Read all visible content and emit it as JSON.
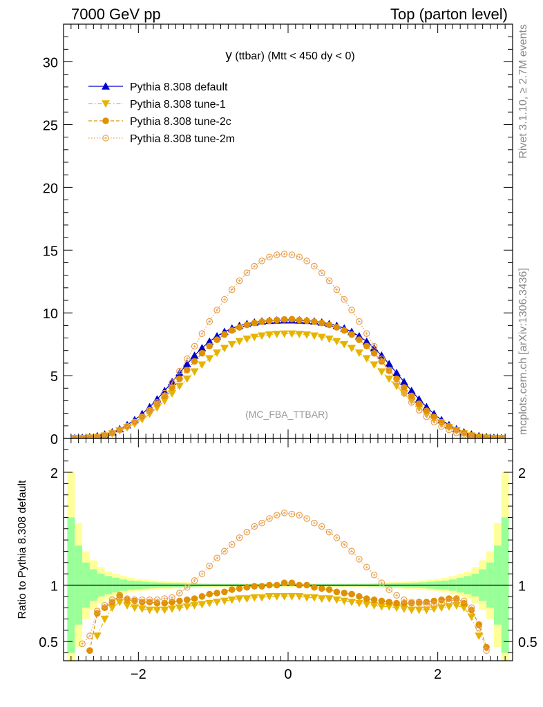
{
  "header": {
    "left_title": "7000 GeV pp",
    "right_title": "Top (parton level)"
  },
  "side_labels": {
    "rivet": "Rivet 3.1.10, ≥ 2.7M events",
    "mcplots": "mcplots.cern.ch [arXiv:1306.3436]"
  },
  "chart_data": [
    {
      "type": "line",
      "panel": "main",
      "title": "y (ttbar) (Mtt < 450 dy < 0)",
      "title_main": "y",
      "title_rest": " (ttbar) (Mtt < 450 dy < 0)",
      "analysis_label": "(MC_FBA_TTBAR)",
      "xlim": [
        -3.0,
        3.0
      ],
      "ylim": [
        0,
        33
      ],
      "yticks": [
        0,
        5,
        10,
        15,
        20,
        25,
        30
      ],
      "legend_position": "top-left",
      "x": [
        -2.85,
        -2.75,
        -2.65,
        -2.55,
        -2.45,
        -2.35,
        -2.25,
        -2.15,
        -2.05,
        -1.95,
        -1.85,
        -1.75,
        -1.65,
        -1.55,
        -1.45,
        -1.35,
        -1.25,
        -1.15,
        -1.05,
        -0.95,
        -0.85,
        -0.75,
        -0.65,
        -0.55,
        -0.45,
        -0.35,
        -0.25,
        -0.15,
        -0.05,
        0.05,
        0.15,
        0.25,
        0.35,
        0.45,
        0.55,
        0.65,
        0.75,
        0.85,
        0.95,
        1.05,
        1.15,
        1.25,
        1.35,
        1.45,
        1.55,
        1.65,
        1.75,
        1.85,
        1.95,
        2.05,
        2.15,
        2.25,
        2.35,
        2.45,
        2.55,
        2.65,
        2.75,
        2.85
      ],
      "series": [
        {
          "name": "Pythia 8.308 default",
          "color": "#0000cc",
          "marker": "triangle-up",
          "line": "solid",
          "values": [
            0.03,
            0.06,
            0.11,
            0.19,
            0.32,
            0.5,
            0.75,
            1.07,
            1.47,
            1.95,
            2.5,
            3.12,
            3.79,
            4.5,
            5.22,
            5.93,
            6.6,
            7.2,
            7.72,
            8.15,
            8.5,
            8.77,
            8.98,
            9.13,
            9.25,
            9.33,
            9.38,
            9.41,
            9.42,
            9.42,
            9.41,
            9.38,
            9.33,
            9.25,
            9.13,
            8.98,
            8.77,
            8.5,
            8.15,
            7.72,
            7.2,
            6.6,
            5.93,
            5.22,
            4.5,
            3.79,
            3.12,
            2.5,
            1.95,
            1.47,
            1.07,
            0.75,
            0.5,
            0.32,
            0.19,
            0.11,
            0.06,
            0.03
          ]
        },
        {
          "name": "Pythia 8.308 tune-1",
          "color": "#e6b400",
          "marker": "triangle-down",
          "line": "dash-dot",
          "values": [
            0.01,
            0.02,
            0.05,
            0.11,
            0.21,
            0.38,
            0.62,
            0.87,
            1.17,
            1.52,
            1.95,
            2.45,
            3.0,
            3.58,
            4.17,
            4.75,
            5.32,
            5.87,
            6.37,
            6.82,
            7.19,
            7.5,
            7.74,
            7.93,
            8.07,
            8.18,
            8.26,
            8.31,
            8.34,
            8.34,
            8.31,
            8.26,
            8.18,
            8.07,
            7.93,
            7.74,
            7.5,
            7.19,
            6.82,
            6.37,
            5.87,
            5.32,
            4.75,
            4.17,
            3.58,
            3.0,
            2.45,
            1.95,
            1.52,
            1.17,
            0.87,
            0.62,
            0.38,
            0.21,
            0.11,
            0.05,
            0.02,
            0.01
          ]
        },
        {
          "name": "Pythia 8.308 tune-2c",
          "color": "#e09000",
          "marker": "circle",
          "line": "dashed",
          "values": [
            0.01,
            0.02,
            0.05,
            0.12,
            0.24,
            0.43,
            0.68,
            0.96,
            1.3,
            1.71,
            2.2,
            2.76,
            3.39,
            4.06,
            4.75,
            5.45,
            6.14,
            6.78,
            7.36,
            7.86,
            8.28,
            8.6,
            8.85,
            9.05,
            9.2,
            9.3,
            9.37,
            9.43,
            9.48,
            9.5,
            9.43,
            9.37,
            9.3,
            9.2,
            9.05,
            8.85,
            8.6,
            8.28,
            7.86,
            7.36,
            6.78,
            6.14,
            5.45,
            4.75,
            4.06,
            3.39,
            2.76,
            2.2,
            1.71,
            1.3,
            0.96,
            0.68,
            0.43,
            0.24,
            0.12,
            0.05,
            0.02,
            0.01
          ]
        },
        {
          "name": "Pythia 8.308 tune-2m",
          "color": "#e8a050",
          "marker": "open-circle",
          "line": "dotted",
          "values": [
            0.01,
            0.02,
            0.05,
            0.12,
            0.25,
            0.44,
            0.69,
            0.96,
            1.3,
            1.72,
            2.25,
            2.87,
            3.6,
            4.44,
            5.36,
            6.34,
            7.34,
            8.35,
            9.32,
            10.23,
            11.07,
            11.85,
            12.56,
            13.19,
            13.72,
            14.14,
            14.45,
            14.63,
            14.69,
            14.63,
            14.45,
            14.14,
            13.72,
            13.19,
            12.56,
            11.85,
            11.07,
            10.23,
            9.32,
            8.35,
            7.34,
            6.34,
            5.36,
            4.44,
            3.6,
            2.87,
            2.25,
            1.72,
            1.3,
            0.96,
            0.69,
            0.44,
            0.25,
            0.12,
            0.05,
            0.02,
            0.01,
            0.01
          ]
        }
      ]
    },
    {
      "type": "line",
      "panel": "ratio",
      "ylabel": "Ratio to Pythia 8.308 default",
      "xlim": [
        -3.0,
        3.0
      ],
      "ylim": [
        0.33,
        2.3
      ],
      "yticks": [
        0.5,
        1,
        2
      ],
      "xticks": [
        -2,
        0,
        2
      ],
      "reference_line": 1,
      "band_edges": [
        -2.9,
        -2.8,
        -2.7,
        -2.6,
        -2.5,
        -2.4,
        -2.3,
        -2.2,
        -2.1,
        -2.0,
        -1.9,
        -1.8,
        -1.7,
        -1.6,
        -1.5,
        -1.4,
        -1.3,
        -1.2,
        -1.1,
        -1.0,
        -0.9,
        -0.8,
        -0.7,
        -0.6,
        -0.5,
        -0.4,
        -0.3,
        -0.2,
        -0.1,
        0.0,
        0.1,
        0.2,
        0.3,
        0.4,
        0.5,
        0.6,
        0.7,
        0.8,
        0.9,
        1.0,
        1.1,
        1.2,
        1.3,
        1.4,
        1.5,
        1.6,
        1.7,
        1.8,
        1.9,
        2.0,
        2.1,
        2.2,
        2.3,
        2.4,
        2.5,
        2.6,
        2.7,
        2.8,
        2.9
      ],
      "band_inner": [
        0.6,
        0.35,
        0.2,
        0.14,
        0.1,
        0.08,
        0.065,
        0.05,
        0.04,
        0.035,
        0.03,
        0.025,
        0.022,
        0.02,
        0.018,
        0.016,
        0.014,
        0.012,
        0.011,
        0.01,
        0.01,
        0.01,
        0.01,
        0.01,
        0.01,
        0.01,
        0.01,
        0.01,
        0.01,
        0.01,
        0.01,
        0.01,
        0.01,
        0.01,
        0.01,
        0.01,
        0.01,
        0.01,
        0.01,
        0.01,
        0.011,
        0.012,
        0.014,
        0.016,
        0.018,
        0.02,
        0.022,
        0.025,
        0.03,
        0.035,
        0.04,
        0.05,
        0.065,
        0.08,
        0.1,
        0.14,
        0.2,
        0.35,
        0.6
      ],
      "band_outer": [
        1.0,
        0.55,
        0.3,
        0.22,
        0.16,
        0.12,
        0.1,
        0.08,
        0.065,
        0.055,
        0.048,
        0.042,
        0.038,
        0.034,
        0.03,
        0.027,
        0.024,
        0.021,
        0.019,
        0.017,
        0.016,
        0.015,
        0.015,
        0.015,
        0.015,
        0.015,
        0.015,
        0.015,
        0.015,
        0.015,
        0.015,
        0.015,
        0.015,
        0.015,
        0.015,
        0.015,
        0.015,
        0.015,
        0.016,
        0.017,
        0.019,
        0.021,
        0.024,
        0.027,
        0.03,
        0.034,
        0.038,
        0.042,
        0.048,
        0.055,
        0.065,
        0.08,
        0.1,
        0.12,
        0.16,
        0.22,
        0.3,
        0.55,
        1.0
      ],
      "series": [
        {
          "name": "Pythia 8.308 tune-1",
          "color": "#e6b400",
          "marker": "triangle-down",
          "line": "dash-dot",
          "x": [
            -2.55,
            -2.45,
            -2.35,
            -2.25,
            -2.15,
            -2.05,
            -1.95,
            -1.85,
            -1.75,
            -1.65,
            -1.55,
            -1.45,
            -1.35,
            -1.25,
            -1.15,
            -1.05,
            -0.95,
            -0.85,
            -0.75,
            -0.65,
            -0.55,
            -0.45,
            -0.35,
            -0.25,
            -0.15,
            -0.05,
            0.05,
            0.15,
            0.25,
            0.35,
            0.45,
            0.55,
            0.65,
            0.75,
            0.85,
            0.95,
            1.05,
            1.15,
            1.25,
            1.35,
            1.45,
            1.55,
            1.65,
            1.75,
            1.85,
            1.95,
            2.05,
            2.15,
            2.25,
            2.35,
            2.45,
            2.55
          ],
          "values": [
            0.55,
            0.7,
            0.8,
            0.85,
            0.82,
            0.8,
            0.79,
            0.78,
            0.78,
            0.78,
            0.79,
            0.8,
            0.81,
            0.82,
            0.83,
            0.84,
            0.85,
            0.86,
            0.87,
            0.88,
            0.88,
            0.89,
            0.89,
            0.9,
            0.9,
            0.9,
            0.9,
            0.9,
            0.89,
            0.89,
            0.88,
            0.88,
            0.87,
            0.86,
            0.85,
            0.84,
            0.83,
            0.82,
            0.81,
            0.81,
            0.8,
            0.79,
            0.78,
            0.78,
            0.78,
            0.79,
            0.8,
            0.81,
            0.82,
            0.8,
            0.72,
            0.55
          ]
        },
        {
          "name": "Pythia 8.308 tune-2c",
          "color": "#e09000",
          "marker": "circle",
          "line": "dashed",
          "x": [
            -2.65,
            -2.55,
            -2.45,
            -2.35,
            -2.25,
            -2.15,
            -2.05,
            -1.95,
            -1.85,
            -1.75,
            -1.65,
            -1.55,
            -1.45,
            -1.35,
            -1.25,
            -1.15,
            -1.05,
            -0.95,
            -0.85,
            -0.75,
            -0.65,
            -0.55,
            -0.45,
            -0.35,
            -0.25,
            -0.15,
            -0.05,
            0.05,
            0.15,
            0.25,
            0.35,
            0.45,
            0.55,
            0.65,
            0.75,
            0.85,
            0.95,
            1.05,
            1.15,
            1.25,
            1.35,
            1.45,
            1.55,
            1.65,
            1.75,
            1.85,
            1.95,
            2.05,
            2.15,
            2.25,
            2.35,
            2.45,
            2.55,
            2.65
          ],
          "values": [
            0.42,
            0.75,
            0.8,
            0.85,
            0.91,
            0.87,
            0.86,
            0.85,
            0.85,
            0.84,
            0.84,
            0.85,
            0.86,
            0.87,
            0.88,
            0.9,
            0.92,
            0.93,
            0.94,
            0.96,
            0.97,
            0.98,
            0.99,
            0.99,
            1.0,
            1.0,
            1.02,
            1.02,
            1.0,
            1.0,
            0.98,
            0.97,
            0.96,
            0.94,
            0.93,
            0.92,
            0.9,
            0.88,
            0.87,
            0.86,
            0.85,
            0.84,
            0.84,
            0.84,
            0.85,
            0.85,
            0.86,
            0.87,
            0.88,
            0.88,
            0.84,
            0.78,
            0.65,
            0.45
          ]
        },
        {
          "name": "Pythia 8.308 tune-2m",
          "color": "#e8a050",
          "marker": "open-circle",
          "line": "dotted",
          "x": [
            -2.75,
            -2.65,
            -2.55,
            -2.45,
            -2.35,
            -2.25,
            -2.15,
            -2.05,
            -1.95,
            -1.85,
            -1.75,
            -1.65,
            -1.55,
            -1.45,
            -1.35,
            -1.25,
            -1.15,
            -1.05,
            -0.95,
            -0.85,
            -0.75,
            -0.65,
            -0.55,
            -0.45,
            -0.35,
            -0.25,
            -0.15,
            -0.05,
            0.05,
            0.15,
            0.25,
            0.35,
            0.45,
            0.55,
            0.65,
            0.75,
            0.85,
            0.95,
            1.05,
            1.15,
            1.25,
            1.35,
            1.45,
            1.55,
            1.65,
            1.75,
            1.85,
            1.95,
            2.05,
            2.15,
            2.25,
            2.35,
            2.45,
            2.55,
            2.65
          ],
          "values": [
            0.48,
            0.55,
            0.77,
            0.82,
            0.87,
            0.9,
            0.88,
            0.87,
            0.87,
            0.87,
            0.87,
            0.88,
            0.89,
            0.93,
            0.98,
            1.04,
            1.1,
            1.17,
            1.24,
            1.3,
            1.36,
            1.42,
            1.47,
            1.52,
            1.55,
            1.59,
            1.62,
            1.64,
            1.63,
            1.62,
            1.59,
            1.55,
            1.52,
            1.47,
            1.42,
            1.36,
            1.3,
            1.23,
            1.16,
            1.09,
            1.02,
            0.96,
            0.91,
            0.87,
            0.85,
            0.84,
            0.83,
            0.83,
            0.84,
            0.86,
            0.87,
            0.86,
            0.8,
            0.62,
            0.42
          ]
        }
      ]
    }
  ]
}
